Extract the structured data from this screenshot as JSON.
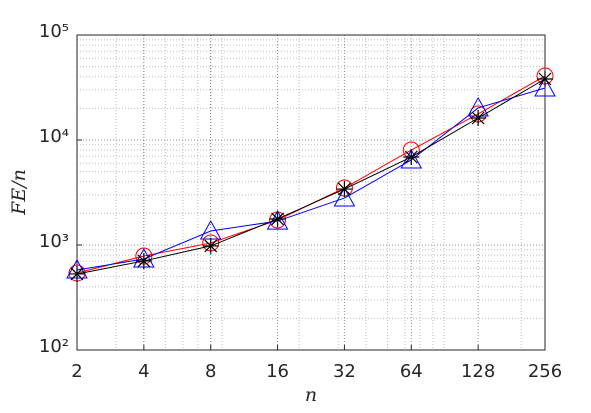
{
  "chart_data": {
    "type": "line",
    "x_label": "n",
    "y_label": "FE/n",
    "x": [
      2,
      4,
      8,
      16,
      32,
      64,
      128,
      256
    ],
    "xscale": "log",
    "yscale": "log",
    "xlim": [
      2,
      256
    ],
    "ylim": [
      100,
      100000
    ],
    "xticks": [
      2,
      4,
      8,
      16,
      32,
      64,
      128,
      256
    ],
    "yticks": [
      {
        "value": 100,
        "label": "10²"
      },
      {
        "value": 1000,
        "label": "10³"
      },
      {
        "value": 10000,
        "label": "10⁴"
      },
      {
        "value": 100000,
        "label": "10⁵"
      }
    ],
    "grid": true,
    "minor_grid": true,
    "series": [
      {
        "color": "#ff0000",
        "marker": "circle",
        "values": [
          541,
          785,
          1045,
          1730,
          3490,
          8030,
          17700,
          40700
        ]
      },
      {
        "color": "#0000ff",
        "marker": "triangle",
        "values": [
          578,
          736,
          1360,
          1690,
          2800,
          6450,
          20200,
          31300
        ]
      },
      {
        "color": "#000000",
        "marker": "asterisk",
        "values": [
          530,
          705,
          980,
          1770,
          3410,
          6890,
          16200,
          38100
        ]
      }
    ]
  }
}
